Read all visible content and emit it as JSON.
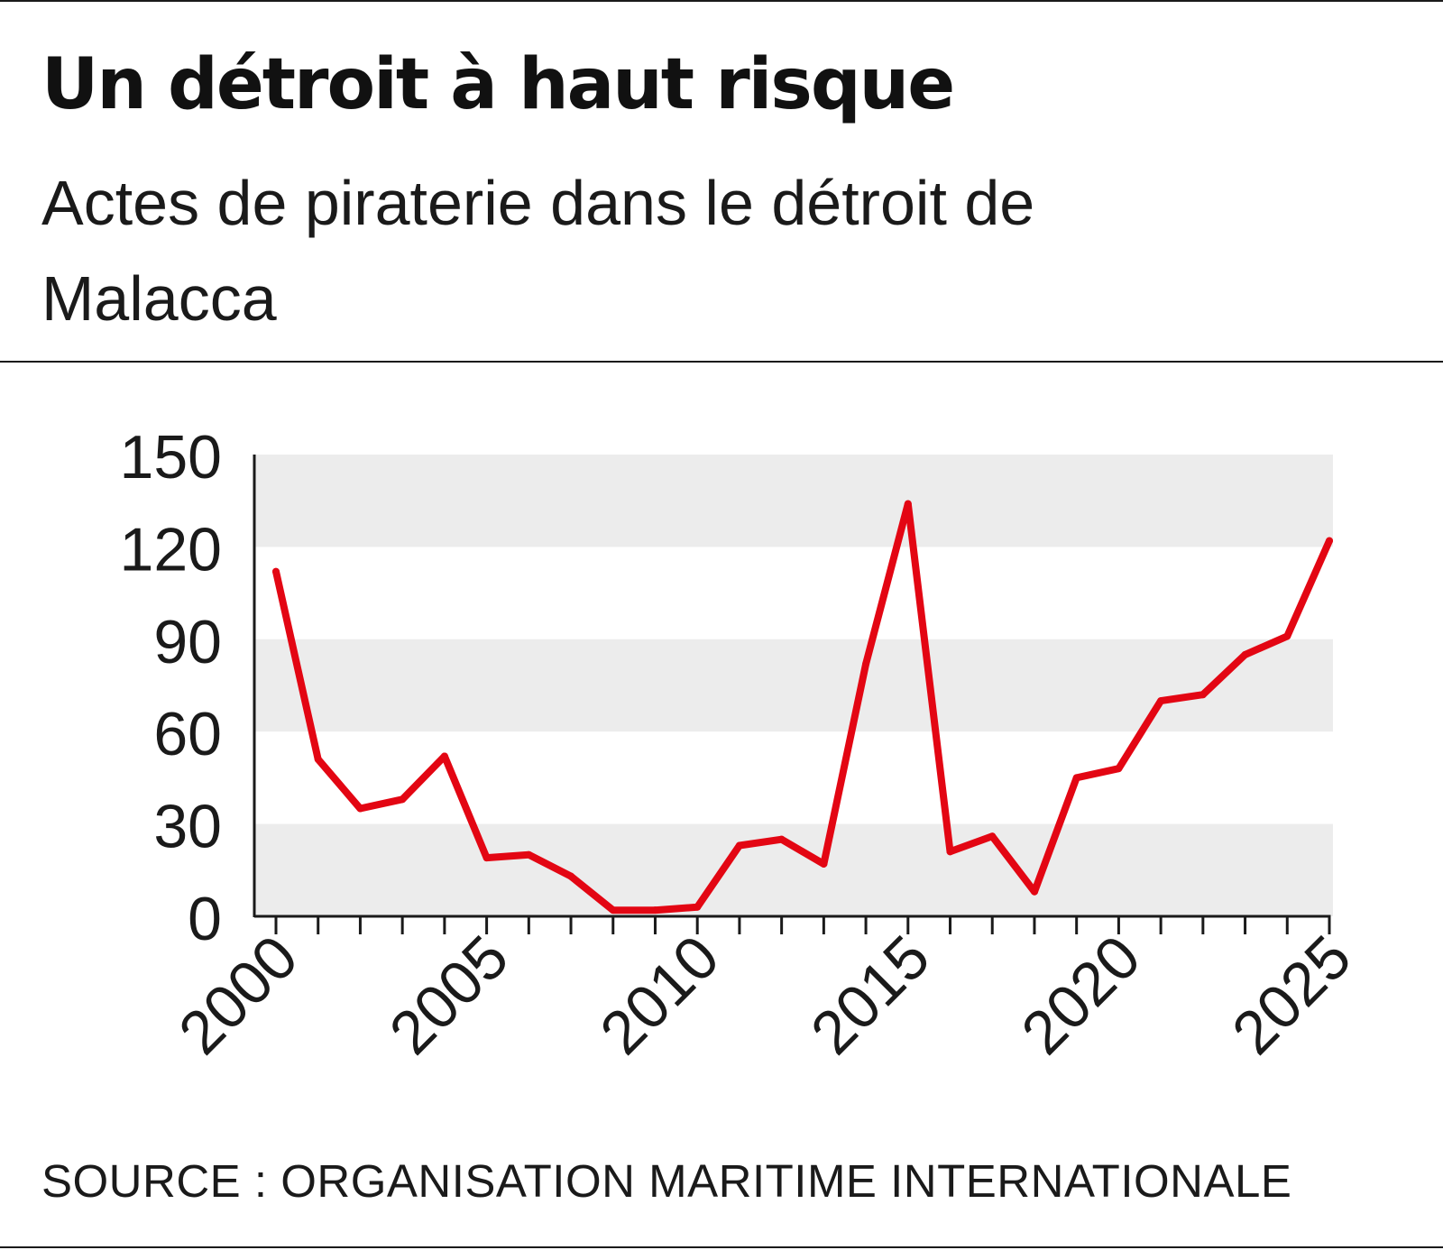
{
  "header": {
    "title": "Un détroit à haut risque",
    "subtitle": "Actes de piraterie dans le détroit de Malacca"
  },
  "footer": {
    "source": "SOURCE : ORGANISATION MARITIME INTERNATIONALE"
  },
  "colors": {
    "line": "#e30613",
    "band": "#ececec",
    "axis": "#1a1a1a"
  },
  "chart_data": {
    "type": "line",
    "title": "Un détroit à haut risque",
    "subtitle": "Actes de piraterie dans le détroit de Malacca",
    "xlabel": "",
    "ylabel": "",
    "xlim": [
      2000,
      2025
    ],
    "ylim": [
      0,
      150
    ],
    "x_ticks": [
      "2000",
      "2005",
      "2010",
      "2015",
      "2020",
      "2025"
    ],
    "y_ticks": [
      "0",
      "30",
      "60",
      "90",
      "120",
      "150"
    ],
    "grid": "alternating horizontal bands",
    "legend": "none",
    "x": [
      2000,
      2001,
      2002,
      2003,
      2004,
      2005,
      2006,
      2007,
      2008,
      2009,
      2010,
      2011,
      2012,
      2013,
      2014,
      2015,
      2016,
      2017,
      2018,
      2019,
      2020,
      2021,
      2022,
      2023,
      2024,
      2025
    ],
    "series": [
      {
        "values": [
          112,
          51,
          35,
          38,
          52,
          19,
          20,
          13,
          2,
          2,
          3,
          23,
          25,
          17,
          82,
          134,
          21,
          26,
          8,
          45,
          48,
          70,
          72,
          85,
          91,
          122
        ]
      }
    ]
  }
}
